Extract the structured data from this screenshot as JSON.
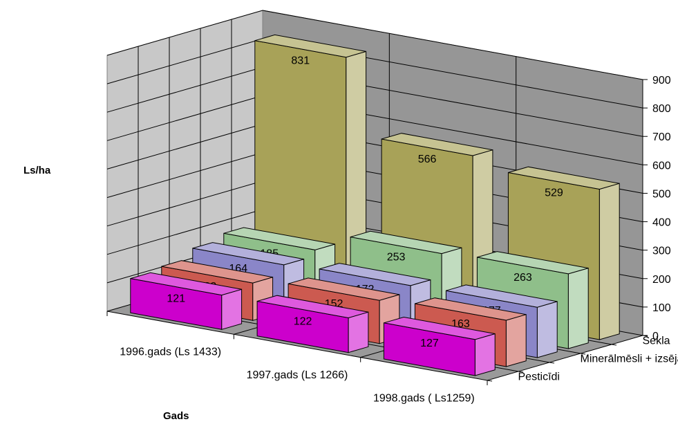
{
  "chart_data": {
    "type": "bar3d",
    "title": "",
    "xlabel": "Gads",
    "ylabel": "Ls/ha",
    "categories": [
      "1996.gads (Ls 1433)",
      "1997.gads (Ls 1266)",
      "1998.gads ( Ls1259)"
    ],
    "depth_labels": [
      "Pesticīdi",
      "Minerālmēsli + izsēja",
      "Sekla"
    ],
    "series": [
      {
        "values": [
          121,
          122,
          127
        ],
        "color": "#cc00cc"
      },
      {
        "values": [
          132,
          152,
          163
        ],
        "color": "#cc5a50"
      },
      {
        "values": [
          164,
          172,
          177
        ],
        "color": "#8a86c8"
      },
      {
        "values": [
          185,
          253,
          263
        ],
        "color": "#8fbf8a"
      },
      {
        "values": [
          831,
          566,
          529
        ],
        "color": "#a8a258"
      }
    ],
    "ylim": [
      0,
      900
    ],
    "yticks": [
      0,
      100,
      200,
      300,
      400,
      500,
      600,
      700,
      800,
      900
    ],
    "grid": true
  }
}
